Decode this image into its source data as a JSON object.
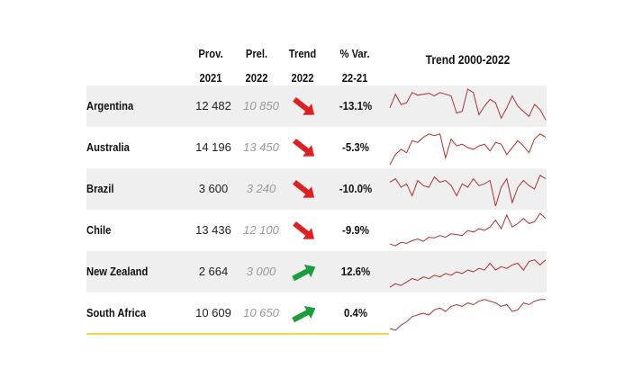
{
  "header": {
    "prov_line1": "Prov.",
    "prov_line2": "2021",
    "prel_line1": "Prel.",
    "prel_line2": "2022",
    "trend_line1": "Trend",
    "trend_line2": "2022",
    "var_line1": "% Var.",
    "var_line2": "22-21",
    "sparkline_title": "Trend 2000-2022"
  },
  "colors": {
    "down": "#e02020",
    "up": "#1a9e3c",
    "spark": "#b03030",
    "accent_line": "#f4d84a",
    "row_shade": "#efefef"
  },
  "chart_data": {
    "type": "table",
    "columns": [
      "Prov. 2021",
      "Prel. 2022",
      "Trend 2022",
      "% Var. 22-21",
      "Trend 2000-2022"
    ],
    "rows": [
      {
        "country": "Argentina",
        "prov_2021": "12 482",
        "prel_2022": "10 850",
        "trend": "down",
        "var": "-13.1%",
        "spark": [
          0.45,
          0.85,
          0.55,
          0.6,
          0.9,
          0.82,
          0.85,
          0.88,
          0.8,
          0.9,
          0.85,
          0.8,
          0.3,
          0.35,
          1.0,
          0.9,
          0.25,
          0.5,
          0.7,
          0.6,
          0.15,
          0.45,
          0.8,
          0.5,
          0.35,
          0.2,
          0.55,
          0.4,
          0.1
        ]
      },
      {
        "country": "Australia",
        "prov_2021": "14 196",
        "prel_2022": "13 450",
        "trend": "down",
        "var": "-5.3%",
        "spark": [
          0.0,
          0.3,
          0.45,
          0.35,
          0.7,
          0.65,
          0.8,
          0.9,
          0.85,
          0.9,
          0.2,
          0.75,
          0.55,
          0.6,
          0.5,
          0.45,
          0.55,
          0.6,
          0.4,
          0.65,
          0.6,
          0.3,
          0.5,
          0.7,
          0.55,
          0.35,
          0.75,
          0.9,
          0.8
        ]
      },
      {
        "country": "Brazil",
        "prov_2021": "3 600",
        "prel_2022": "3 240",
        "trend": "down",
        "var": "-10.0%",
        "spark": [
          0.7,
          0.8,
          0.55,
          0.65,
          0.3,
          0.75,
          0.6,
          0.55,
          0.85,
          0.7,
          0.75,
          0.6,
          0.3,
          0.65,
          0.55,
          0.8,
          0.6,
          0.65,
          0.75,
          0.0,
          0.55,
          0.8,
          0.1,
          0.55,
          0.75,
          0.6,
          0.5,
          0.9,
          0.8
        ]
      },
      {
        "country": "Chile",
        "prov_2021": "13 436",
        "prel_2022": "12 100",
        "trend": "down",
        "var": "-9.9%",
        "spark": [
          0.1,
          0.05,
          0.15,
          0.12,
          0.2,
          0.25,
          0.18,
          0.3,
          0.28,
          0.35,
          0.3,
          0.4,
          0.38,
          0.35,
          0.5,
          0.45,
          0.55,
          0.5,
          0.6,
          0.8,
          0.55,
          0.95,
          0.6,
          0.7,
          0.85,
          0.7,
          0.75,
          1.0,
          0.85
        ]
      },
      {
        "country": "New Zealand",
        "prov_2021": "2 664",
        "prel_2022": "3 000",
        "trend": "up",
        "var": "12.6%",
        "spark": [
          0.05,
          0.15,
          0.1,
          0.2,
          0.3,
          0.25,
          0.35,
          0.3,
          0.4,
          0.35,
          0.45,
          0.4,
          0.5,
          0.45,
          0.55,
          0.5,
          0.6,
          0.55,
          0.75,
          0.55,
          0.65,
          0.6,
          0.7,
          0.75,
          0.55,
          0.8,
          0.85,
          0.7,
          0.85
        ]
      },
      {
        "country": "South Africa",
        "prov_2021": "10 609",
        "prel_2022": "10 650",
        "trend": "up",
        "var": "0.4%",
        "spark": [
          0.05,
          0.0,
          0.15,
          0.25,
          0.4,
          0.45,
          0.5,
          0.45,
          0.6,
          0.65,
          0.55,
          0.7,
          0.75,
          0.7,
          0.8,
          0.75,
          0.85,
          0.9,
          0.85,
          0.8,
          0.7,
          0.75,
          0.55,
          0.6,
          0.8,
          0.75,
          0.85,
          0.9,
          0.9
        ]
      }
    ]
  }
}
